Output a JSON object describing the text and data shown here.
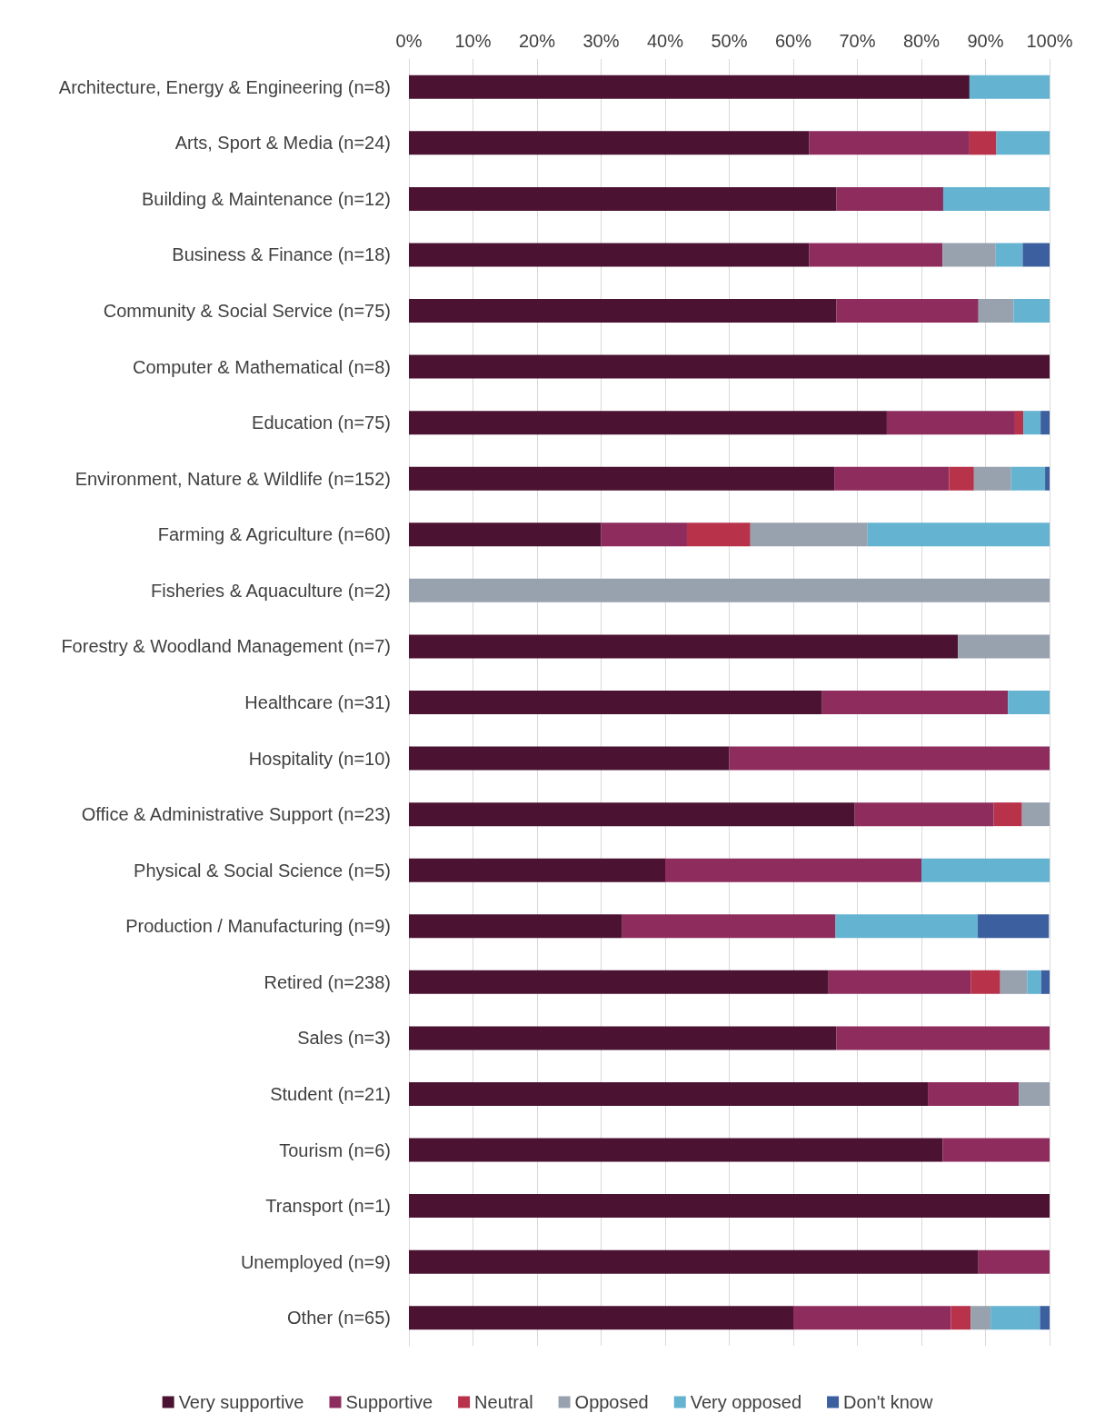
{
  "chart_data": {
    "type": "bar",
    "orientation": "horizontal",
    "stacked": true,
    "categories": [
      "Architecture, Energy & Engineering (n=8)",
      "Arts, Sport & Media (n=24)",
      "Building & Maintenance (n=12)",
      "Business & Finance (n=18)",
      "Community & Social Service (n=75)",
      "Computer & Mathematical (n=8)",
      "Education (n=75)",
      "Environment, Nature & Wildlife (n=152)",
      "Farming & Agriculture (n=60)",
      "Fisheries & Aquaculture (n=2)",
      "Forestry & Woodland Management (n=7)",
      "Healthcare (n=31)",
      "Hospitality (n=10)",
      "Office & Administrative Support (n=23)",
      "Physical & Social Science (n=5)",
      "Production / Manufacturing (n=9)",
      "Retired (n=238)",
      "Sales (n=3)",
      "Student (n=21)",
      "Tourism (n=6)",
      "Transport (n=1)",
      "Unemployed (n=9)",
      "Other (n=65)"
    ],
    "series": [
      {
        "name": "Very supportive",
        "color": "#4b1331",
        "values": [
          87.5,
          62.5,
          66.7,
          62.5,
          66.7,
          100,
          74.6,
          66.4,
          30,
          null,
          85.7,
          64.5,
          50,
          69.6,
          40,
          33.3,
          65.5,
          66.7,
          81.0,
          83.3,
          100,
          88.9,
          60
        ]
      },
      {
        "name": "Supportive",
        "color": "#8e2c5e",
        "values": [
          null,
          25,
          16.7,
          20.8,
          22.2,
          null,
          20,
          17.9,
          13.4,
          null,
          null,
          29,
          50,
          21.7,
          40,
          33.3,
          22.2,
          33.3,
          14.2,
          16.7,
          null,
          11.1,
          24.6
        ]
      },
      {
        "name": "Neutral",
        "color": "#b8324a",
        "values": [
          null,
          4.2,
          null,
          null,
          null,
          null,
          1.3,
          3.9,
          9.9,
          null,
          null,
          null,
          null,
          4.4,
          null,
          null,
          4.6,
          null,
          null,
          null,
          null,
          null,
          3.1
        ]
      },
      {
        "name": "Opposed",
        "color": "#98a2ae",
        "values": [
          null,
          null,
          null,
          8.3,
          5.5,
          null,
          null,
          5.8,
          18.3,
          100,
          14.3,
          null,
          null,
          4.3,
          null,
          null,
          4.2,
          null,
          4.8,
          null,
          null,
          null,
          3.1
        ]
      },
      {
        "name": "Very opposed",
        "color": "#64b3d1",
        "values": [
          12.5,
          8.3,
          16.7,
          4.2,
          5.6,
          null,
          2.7,
          5.3,
          28.4,
          null,
          null,
          6.5,
          null,
          null,
          20,
          22.2,
          2.2,
          null,
          null,
          null,
          null,
          null,
          7.7
        ]
      },
      {
        "name": "Don't know",
        "color": "#3c5f9f",
        "values": [
          null,
          null,
          null,
          4.2,
          null,
          null,
          1.4,
          0.7,
          null,
          null,
          null,
          null,
          null,
          null,
          null,
          11.1,
          1.3,
          null,
          null,
          null,
          null,
          null,
          1.5
        ]
      }
    ],
    "xlim": [
      0,
      100
    ],
    "xticks": [
      {
        "value": 0,
        "label": "0%"
      },
      {
        "value": 10,
        "label": "10%"
      },
      {
        "value": 20,
        "label": "20%"
      },
      {
        "value": 30,
        "label": "30%"
      },
      {
        "value": 40,
        "label": "40%"
      },
      {
        "value": 50,
        "label": "50%"
      },
      {
        "value": 60,
        "label": "60%"
      },
      {
        "value": 70,
        "label": "70%"
      },
      {
        "value": 80,
        "label": "80%"
      },
      {
        "value": 90,
        "label": "90%"
      },
      {
        "value": 100,
        "label": "100%"
      }
    ],
    "grid": "x",
    "legend": "bottom"
  }
}
